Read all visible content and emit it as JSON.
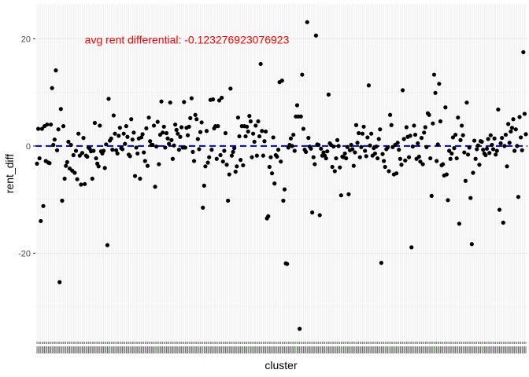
{
  "chart_data": {
    "type": "scatter",
    "xlabel": "cluster",
    "ylabel": "rent_diff",
    "ylim": [
      -36.5,
      26.5
    ],
    "y_ticks": [
      -20,
      0,
      20
    ],
    "grid": true,
    "panel_background": "#ffffff",
    "grid_color": "#ebebeb",
    "point_color": "#000000",
    "reference_line": {
      "y": 0,
      "style": "dashed",
      "color": "#0000cc"
    },
    "annotation": {
      "text": "avg rent differential:  -0.123276923076923",
      "color": "#ff0000",
      "x_position_index": 38,
      "y": 19.8
    },
    "x_tick_highlight_color": "#33aa33",
    "values": [
      -3.3,
      3.2,
      -2.3,
      -14,
      3.2,
      -11.2,
      3.7,
      -2.8,
      4,
      -3.1,
      -3.2,
      4,
      10.8,
      0.2,
      1.2,
      14.1,
      -0.8,
      3.1,
      -25.4,
      6.9,
      -10.2,
      3.7,
      -6.1,
      -3.7,
      -3,
      0.8,
      -4.2,
      0.2,
      -4.6,
      -1.7,
      -5,
      -0.9,
      -6.2,
      2.3,
      -1.8,
      -7.2,
      -1.3,
      1.5,
      -7.1,
      -1.8,
      -2,
      -0.3,
      -0.5,
      -1,
      -6.1,
      -0.9,
      4.3,
      -2.3,
      -3.3,
      -3.8,
      3.8,
      -1,
      -1.4,
      -0.9,
      -4.1,
      0.3,
      -18.5,
      8.8,
      1,
      1.4,
      -0.7,
      5.7,
      2.3,
      -0.8,
      -1.4,
      1.9,
      3.4,
      -0.4,
      -0.6,
      2.3,
      0.4,
      3.7,
      1.7,
      -1.6,
      -1.9,
      5,
      1.2,
      2.5,
      -5.6,
      -0.3,
      -1.4,
      1.4,
      -6.1,
      1.6,
      2.2,
      -1.2,
      -2.8,
      3.3,
      -3.7,
      5.3,
      0.9,
      0.2,
      0.2,
      3.8,
      -7.6,
      -0.1,
      4.5,
      -3.4,
      2.1,
      8.3,
      2.5,
      3.6,
      -0.3,
      2.4,
      1.4,
      0.4,
      8.1,
      1.1,
      -2.4,
      0.1,
      4,
      3,
      2.3,
      -0.7,
      1.7,
      3.5,
      -0.3,
      8.2,
      -0.3,
      3.4,
      2,
      3.6,
      5.2,
      8.9,
      -1.1,
      -2.8,
      5.8,
      5,
      1.3,
      -0.6,
      2.6,
      4.4,
      -11.5,
      -7.4,
      -3.8,
      2.8,
      -3.1,
      -2.1,
      8.6,
      -0.7,
      8.7,
      3.3,
      3.7,
      -2.4,
      3.7,
      8.5,
      -1.7,
      9,
      -2.9,
      -0.9,
      2.4,
      -3.5,
      -10.2,
      -5.3,
      10.7,
      -1.8,
      -1.1,
      -0.4,
      -4.8,
      -3.8,
      5.3,
      1.8,
      -2.6,
      3.7,
      -3.6,
      3.7,
      1.8,
      3.6,
      2.7,
      5.6,
      4.6,
      -2.1,
      2.3,
      0.8,
      3.8,
      -1.8,
      4.6,
      1.8,
      15.3,
      2.8,
      -1.8,
      0.9,
      2.7,
      -13.5,
      -13.1,
      -3.9,
      -2.1,
      -5.1,
      1.6,
      -7,
      -1.7,
      -2,
      -0.7,
      11.9,
      -2.9,
      12.2,
      -10.2,
      -8.1,
      -21.9,
      -22,
      -0.3,
      0.2,
      1.4,
      0,
      2.1,
      -0.9,
      5.5,
      7.6,
      5.5,
      -34.1,
      5.5,
      13.3,
      3.2,
      -0.7,
      -1.1,
      23.1,
      1.5,
      -0.1,
      -0.5,
      -12.4,
      -2.1,
      -3.4,
      20.6,
      0.3,
      0.2,
      -12.9,
      -0.5,
      -1.8,
      -1.2,
      -1.8,
      -2.3,
      -1,
      9.6,
      0.5,
      0.2,
      -3.9,
      -0.1,
      -4.7,
      -2.3,
      1.1,
      0,
      -4,
      -9.2,
      -2,
      -2.1,
      -1.4,
      -2.3,
      -0.2,
      -9,
      -0.8,
      0.2,
      -0.6,
      -3.7,
      -1.2,
      3.9,
      0.6,
      2.4,
      -2.1,
      -0.2,
      2.3,
      3.6,
      -0.9,
      -1.9,
      1.6,
      11.3,
      0.1,
      2.3,
      -1.8,
      -0.4,
      -1.4,
      -0.1,
      -2.3,
      1.3,
      3.1,
      -21.8,
      -1.5,
      -2.8,
      -3.9,
      -0.6,
      -0.3,
      -4.7,
      5.8,
      3.9,
      -0.2,
      -5.3,
      0.2,
      -5.1,
      0.6,
      -0.7,
      -2.4,
      -3.5,
      10.4,
      1.3,
      -2.7,
      3.5,
      1.7,
      -2.1,
      1.9,
      -18.9,
      -0.1,
      3.8,
      2.1,
      -2.4,
      0.5,
      -2,
      -2.9,
      1.5,
      -3.4,
      2.5,
      3.5,
      -0.2,
      6.1,
      5.8,
      -2.3,
      -9.3,
      4.2,
      13.3,
      9.9,
      -2.8,
      0.3,
      11.6,
      4.6,
      -3.6,
      -3.4,
      -5.5,
      7.2,
      -5.3,
      -10.1,
      -0.9,
      -2.4,
      -1.4,
      1.6,
      -0.4,
      2.1,
      -2.3,
      5.3,
      -14.5,
      1.1,
      3.8,
      2,
      -1.2,
      -6.5,
      8.1,
      -1.6,
      -0.3,
      -9.7,
      -18.3,
      -5,
      1,
      -2.4,
      -0.6,
      0.1,
      -3.5,
      0.9,
      0.8,
      -0.7,
      -1.4,
      -1.7,
      -0.5,
      1.3,
      -1.3,
      2,
      0.2,
      -0.6,
      1.4,
      -1.6,
      -0.9,
      6.8,
      -11.9,
      0.5,
      1.5,
      -14.3,
      0,
      2.1,
      -3.8,
      4.1,
      0.6,
      2.7,
      3.4,
      5,
      -0.9,
      3.1,
      0,
      -9.5,
      5.4,
      1.6,
      -0.8,
      17.5,
      6,
      2.2
    ]
  }
}
